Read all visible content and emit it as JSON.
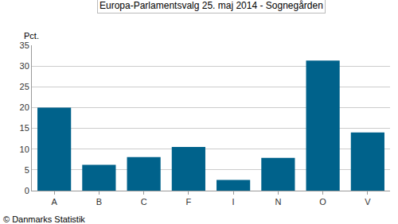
{
  "chart_data": {
    "type": "bar",
    "title": "Europa-Parlamentsvalg 25. maj 2014 - Sognegården",
    "ylabel": "Pct.",
    "source": "© Danmarks Statistik",
    "categories": [
      "A",
      "B",
      "C",
      "F",
      "I",
      "N",
      "O",
      "V"
    ],
    "values": [
      20.0,
      6.2,
      8.1,
      10.5,
      2.6,
      7.9,
      31.3,
      14.0
    ],
    "color": "#00628b",
    "ylim": [
      0,
      35
    ],
    "yticks": [
      0,
      5,
      10,
      15,
      20,
      25,
      30,
      35
    ],
    "grid": true
  }
}
